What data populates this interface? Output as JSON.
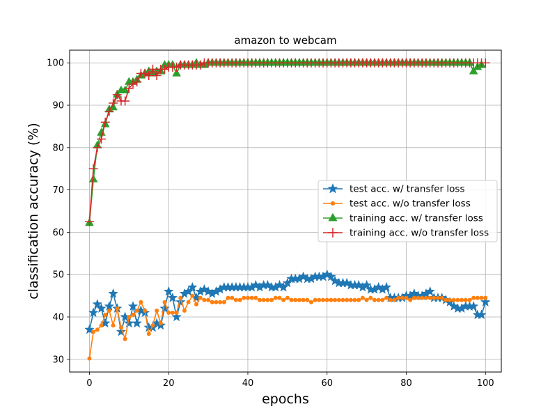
{
  "chart_data": {
    "type": "line",
    "title": "amazon to webcam",
    "xlabel": "epochs",
    "ylabel": "classification accuracy (%)",
    "xlim": [
      -5,
      104
    ],
    "ylim": [
      27,
      103
    ],
    "xticks": [
      0,
      20,
      40,
      60,
      80,
      100
    ],
    "yticks": [
      30,
      40,
      50,
      60,
      70,
      80,
      90,
      100
    ],
    "grid": true,
    "legend_position": "center-right",
    "series": [
      {
        "name": "test acc. w/ transfer loss",
        "color": "#1f77b4",
        "marker": "star",
        "values": [
          37.0,
          41.0,
          43.0,
          42.0,
          38.5,
          42.5,
          45.5,
          42.0,
          36.5,
          40.0,
          38.5,
          42.5,
          38.5,
          41.5,
          41.0,
          37.5,
          37.5,
          38.5,
          38.0,
          42.0,
          46.0,
          44.5,
          40.0,
          43.5,
          45.5,
          46.0,
          47.0,
          44.5,
          46.0,
          46.5,
          46.0,
          45.5,
          46.0,
          46.5,
          47.0,
          47.0,
          47.0,
          47.0,
          47.0,
          47.0,
          47.0,
          47.0,
          47.5,
          47.0,
          47.5,
          47.5,
          47.0,
          47.0,
          47.5,
          47.0,
          48.0,
          49.0,
          49.0,
          49.0,
          49.5,
          49.0,
          49.0,
          49.5,
          49.5,
          49.5,
          50.0,
          49.5,
          48.5,
          48.0,
          48.0,
          48.0,
          47.5,
          47.5,
          47.5,
          47.0,
          47.5,
          46.5,
          46.5,
          47.0,
          46.5,
          47.0,
          44.5,
          44.5,
          44.5,
          44.5,
          45.0,
          45.0,
          45.5,
          45.0,
          45.0,
          45.5,
          46.0,
          44.5,
          44.5,
          44.5,
          44.0,
          43.5,
          42.5,
          42.0,
          42.0,
          42.5,
          42.5,
          42.5,
          40.5,
          40.5,
          43.5
        ]
      },
      {
        "name": "test acc. w/o transfer loss",
        "color": "#ff7f0e",
        "marker": "circle",
        "values": [
          30.2,
          36.5,
          37.0,
          38.0,
          40.5,
          41.5,
          38.0,
          42.0,
          37.5,
          34.8,
          40.0,
          40.5,
          41.5,
          43.5,
          41.5,
          36.0,
          38.0,
          41.5,
          38.5,
          43.5,
          41.0,
          41.0,
          41.0,
          44.5,
          41.5,
          43.5,
          45.0,
          43.0,
          44.5,
          44.0,
          44.0,
          43.5,
          43.5,
          43.5,
          43.5,
          44.5,
          44.5,
          44.0,
          44.0,
          44.5,
          44.5,
          44.5,
          44.5,
          44.0,
          44.0,
          44.0,
          44.0,
          44.5,
          44.5,
          44.0,
          44.5,
          44.0,
          44.0,
          44.0,
          44.0,
          44.0,
          43.5,
          44.0,
          44.0,
          44.0,
          44.0,
          44.0,
          44.0,
          44.0,
          44.0,
          44.0,
          44.0,
          44.0,
          44.0,
          44.5,
          44.0,
          44.5,
          44.0,
          44.0,
          44.0,
          44.5,
          44.0,
          44.0,
          44.5,
          44.5,
          44.5,
          44.0,
          44.5,
          44.5,
          44.5,
          44.5,
          44.5,
          44.5,
          44.5,
          44.5,
          44.0,
          44.0,
          44.0,
          44.0,
          44.0,
          44.0,
          44.0,
          44.5,
          44.5,
          44.5,
          44.5
        ]
      },
      {
        "name": "training acc. w/ transfer loss",
        "color": "#2ca02c",
        "marker": "triangle",
        "values": [
          62.2,
          72.5,
          80.5,
          83.5,
          85.5,
          89.0,
          89.5,
          92.5,
          93.5,
          93.5,
          95.5,
          95.5,
          96.0,
          97.0,
          97.5,
          98.0,
          97.5,
          98.0,
          98.0,
          99.5,
          99.5,
          99.5,
          97.5,
          99.5,
          99.5,
          99.5,
          99.5,
          100,
          99.5,
          99.5,
          100,
          100,
          100,
          100,
          100,
          100,
          100,
          100,
          100,
          100,
          100,
          100,
          100,
          100,
          100,
          100,
          100,
          100,
          100,
          100,
          100,
          100,
          100,
          100,
          100,
          100,
          100,
          100,
          100,
          100,
          100,
          100,
          100,
          100,
          100,
          100,
          100,
          100,
          100,
          100,
          100,
          100,
          100,
          100,
          100,
          100,
          100,
          100,
          100,
          100,
          100,
          100,
          100,
          100,
          100,
          100,
          100,
          100,
          100,
          100,
          100,
          100,
          100,
          100,
          100,
          100,
          100,
          98.0,
          99.0,
          99.5
        ]
      },
      {
        "name": "training acc. w/o transfer loss",
        "color": "#d62728",
        "marker": "plus",
        "values": [
          62.5,
          75.0,
          80.0,
          82.0,
          86.0,
          88.5,
          90.5,
          92.5,
          91.0,
          91.0,
          94.0,
          95.0,
          95.5,
          97.5,
          97.5,
          97.0,
          98.5,
          97.0,
          98.5,
          98.5,
          99.0,
          99.0,
          99.0,
          99.5,
          99.5,
          99.5,
          99.5,
          99.5,
          99.5,
          100,
          100,
          100,
          100,
          100,
          100,
          100,
          100,
          100,
          100,
          100,
          100,
          100,
          100,
          100,
          100,
          100,
          100,
          100,
          100,
          100,
          100,
          100,
          100,
          100,
          100,
          100,
          100,
          100,
          100,
          100,
          100,
          100,
          100,
          100,
          100,
          100,
          100,
          100,
          100,
          100,
          100,
          100,
          100,
          100,
          100,
          100,
          100,
          100,
          100,
          100,
          100,
          100,
          100,
          100,
          100,
          100,
          100,
          100,
          100,
          100,
          100,
          100,
          100,
          100,
          100,
          100,
          100,
          100,
          100,
          100,
          100
        ]
      }
    ]
  }
}
